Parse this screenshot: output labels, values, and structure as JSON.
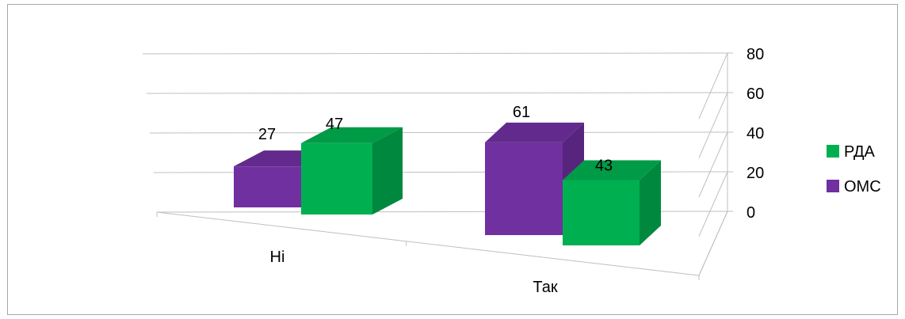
{
  "chart_data": {
    "type": "bar",
    "categories": [
      "Ні",
      "Так"
    ],
    "series": [
      {
        "name": "ОМС",
        "values": [
          27,
          61
        ],
        "color": "#7030a0"
      },
      {
        "name": "РДА",
        "values": [
          47,
          43
        ],
        "color": "#00b050"
      }
    ],
    "ylim": [
      0,
      80
    ],
    "yticks": [
      0,
      20,
      40,
      60,
      80
    ],
    "grid": true,
    "legend": "right",
    "legend_order": [
      "РДА",
      "ОМС"
    ],
    "data_labels": true,
    "style": "3d-clustered-column"
  }
}
